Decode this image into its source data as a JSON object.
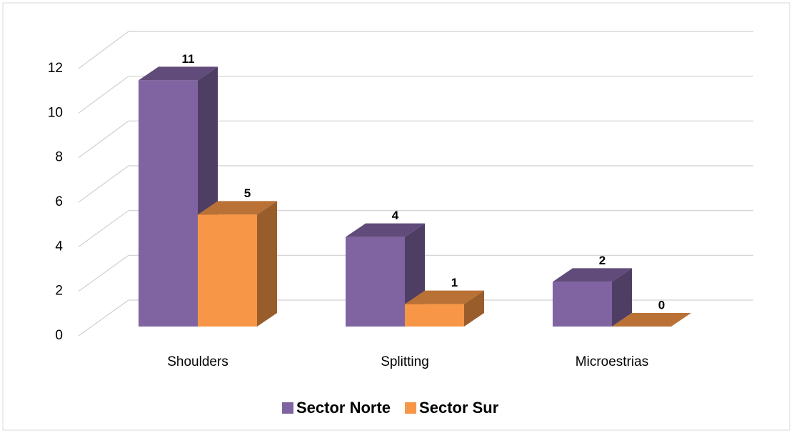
{
  "chart_data": {
    "type": "bar3d",
    "categories": [
      "Shoulders",
      "Splitting",
      "Microestrias"
    ],
    "series": [
      {
        "name": "Sector Norte",
        "color": "#8064a2",
        "values": [
          11,
          4,
          2
        ]
      },
      {
        "name": "Sector Sur",
        "color": "#f79646",
        "values": [
          5,
          1,
          0
        ]
      }
    ],
    "ylim": [
      0,
      12
    ],
    "yticks": [
      0,
      2,
      4,
      6,
      8,
      10,
      12
    ],
    "grid": true,
    "legend": "bottom"
  }
}
